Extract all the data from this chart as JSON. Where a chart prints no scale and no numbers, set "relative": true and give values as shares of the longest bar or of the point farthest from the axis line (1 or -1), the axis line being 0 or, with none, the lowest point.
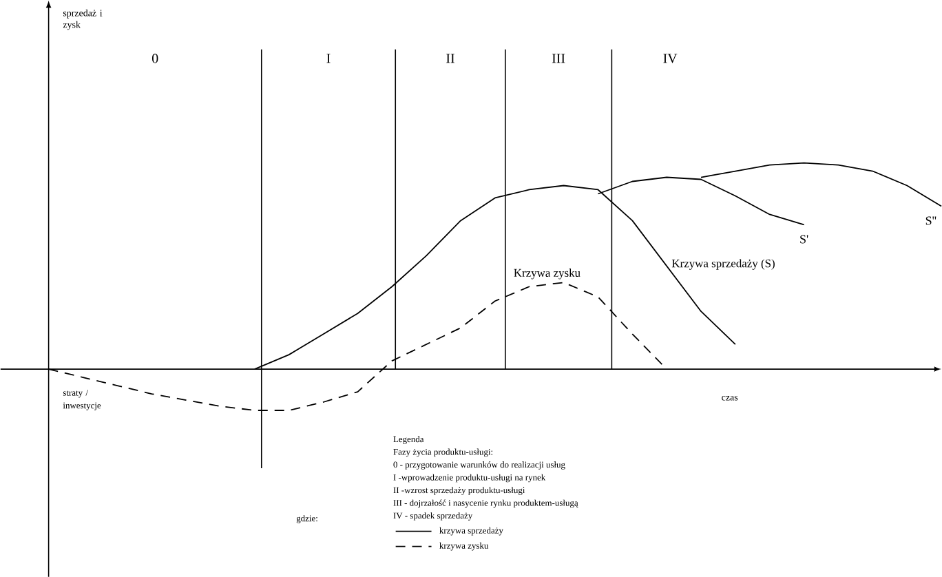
{
  "chart_data": {
    "type": "line",
    "relative": true,
    "xlabel": "czas",
    "legend_title": "Legenda",
    "legend": "bottom",
    "tick_labels": false,
    "categories": [
      null,
      null,
      null,
      null,
      null,
      null,
      null,
      null,
      null,
      null,
      null,
      null,
      null,
      null,
      null,
      null,
      null,
      null,
      null,
      null,
      null,
      null,
      null,
      null,
      null,
      null,
      null
    ],
    "series": [
      {
        "name": "krzywa sprzedaży",
        "color": "#000000",
        "line_style": "solid",
        "values": [
          null,
          null,
          null,
          null,
          null,
          null,
          0,
          0.07,
          0.17,
          0.27,
          0.4,
          0.55,
          0.72,
          0.83,
          0.87,
          0.89,
          0.87,
          0.72,
          0.5,
          0.28,
          0.12,
          null,
          null,
          null,
          null,
          null,
          null
        ]
      },
      {
        "name": "krzywa zysku",
        "color": "#000000",
        "line_style": "dashed",
        "values": [
          0,
          -0.04,
          -0.08,
          -0.12,
          -0.15,
          -0.18,
          -0.2,
          -0.2,
          -0.16,
          -0.11,
          0.04,
          0.12,
          0.2,
          0.33,
          0.4,
          0.42,
          0.35,
          0.17,
          0,
          null,
          null,
          null,
          null,
          null,
          null,
          null,
          null
        ]
      },
      {
        "name": "S'",
        "color": "#000000",
        "line_style": "solid",
        "values": [
          null,
          null,
          null,
          null,
          null,
          null,
          null,
          null,
          null,
          null,
          null,
          null,
          null,
          null,
          null,
          null,
          0.85,
          0.91,
          0.93,
          0.92,
          0.84,
          0.75,
          0.7,
          null,
          null,
          null,
          null
        ]
      },
      {
        "name": "S''",
        "color": "#000000",
        "line_style": "solid",
        "values": [
          null,
          null,
          null,
          null,
          null,
          null,
          null,
          null,
          null,
          null,
          null,
          null,
          null,
          null,
          null,
          null,
          null,
          null,
          null,
          0.93,
          0.96,
          0.99,
          1.0,
          0.99,
          0.96,
          0.89,
          0.79
        ]
      }
    ],
    "annotations": [
      "0",
      "I",
      "II",
      "III",
      "IV",
      "sprzedaż i zysk",
      "Krzywa zysku",
      "Krzywa sprzedaży (S)",
      "straty / inwestycje",
      "Fazy życia produktu-usługi:",
      "0 - przygotowanie warunków do realizacji usług",
      "I -wprowadzenie produktu-usługi na rynek",
      "II -wzrost sprzedaży produktu-usługi",
      "III - dojrzałość i nasycenie rynku produktem-usługą",
      "IV - spadek sprzedaży",
      "gdzie:"
    ]
  }
}
